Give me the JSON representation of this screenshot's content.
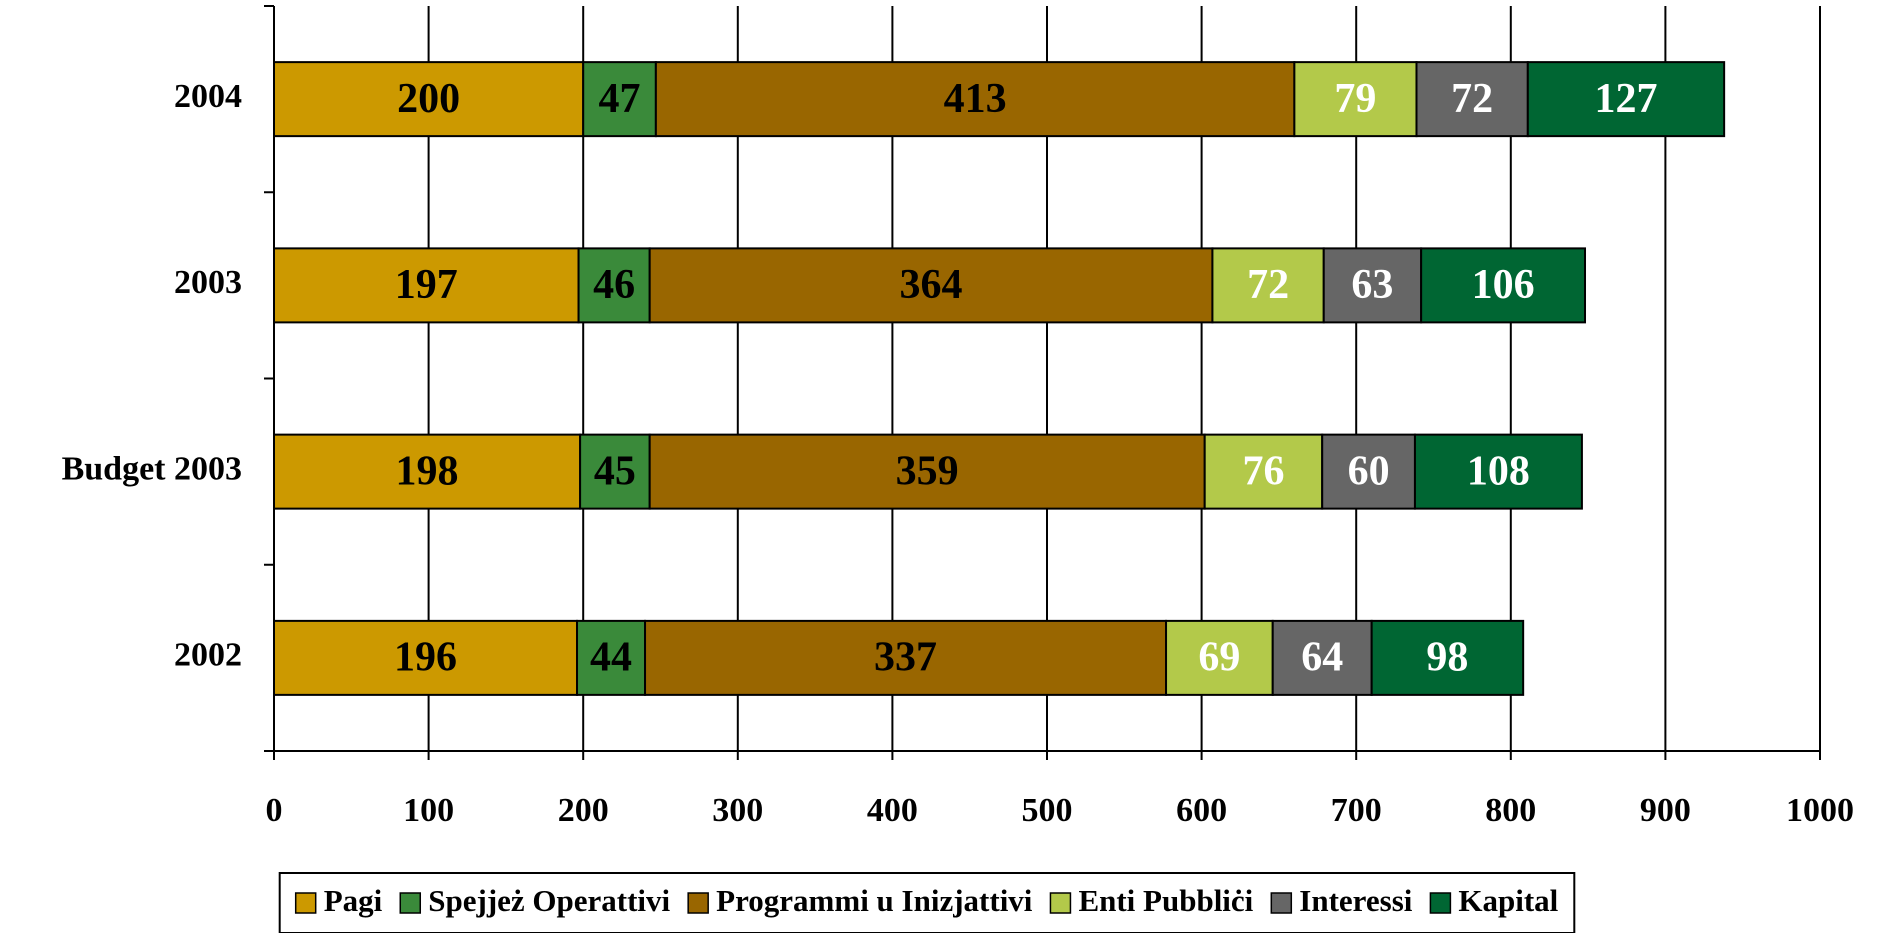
{
  "chart_data": {
    "type": "stacked_bar_horizontal",
    "categories": [
      "2004",
      "2003",
      "Budget 2003",
      "2002"
    ],
    "series": [
      {
        "name": "Pagi",
        "color": "#cc9900",
        "label_color": "#000000",
        "values": [
          200,
          197,
          198,
          196
        ]
      },
      {
        "name": "Spejjeż Operattivi",
        "color": "#3a8a3a",
        "label_color": "#000000",
        "values": [
          47,
          46,
          45,
          44
        ]
      },
      {
        "name": "Programmi u Inizjattivi",
        "color": "#996600",
        "label_color": "#000000",
        "values": [
          413,
          364,
          359,
          337
        ]
      },
      {
        "name": "Enti Pubbliċi",
        "color": "#b3c94a",
        "label_color": "#ffffff",
        "values": [
          79,
          72,
          76,
          69
        ]
      },
      {
        "name": "Interessi",
        "color": "#666666",
        "label_color": "#ffffff",
        "values": [
          72,
          63,
          60,
          64
        ]
      },
      {
        "name": "Kapital",
        "color": "#006633",
        "label_color": "#ffffff",
        "values": [
          127,
          106,
          108,
          98
        ]
      }
    ],
    "xlim": [
      0,
      1000
    ],
    "xticks": [
      0,
      100,
      200,
      300,
      400,
      500,
      600,
      700,
      800,
      900,
      1000
    ],
    "grid": true,
    "legend": "bottom"
  }
}
